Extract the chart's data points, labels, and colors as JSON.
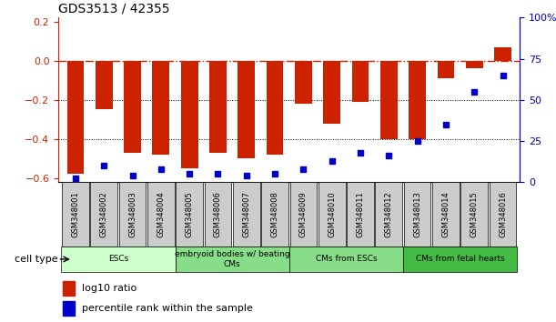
{
  "title": "GDS3513 / 42355",
  "samples": [
    "GSM348001",
    "GSM348002",
    "GSM348003",
    "GSM348004",
    "GSM348005",
    "GSM348006",
    "GSM348007",
    "GSM348008",
    "GSM348009",
    "GSM348010",
    "GSM348011",
    "GSM348012",
    "GSM348013",
    "GSM348014",
    "GSM348015",
    "GSM348016"
  ],
  "log10_ratio": [
    -0.58,
    -0.25,
    -0.47,
    -0.48,
    -0.55,
    -0.47,
    -0.5,
    -0.48,
    -0.22,
    -0.32,
    -0.21,
    -0.4,
    -0.4,
    -0.09,
    -0.04,
    0.07
  ],
  "percentile_rank": [
    2,
    10,
    4,
    8,
    5,
    5,
    4,
    5,
    8,
    13,
    18,
    16,
    25,
    35,
    55,
    65
  ],
  "bar_color": "#cc2200",
  "dot_color": "#0000cc",
  "ref_line_color": "#cc2200",
  "grid_color": "#000000",
  "bg_color": "#ffffff",
  "ylim_left": [
    -0.62,
    0.22
  ],
  "ylim_right": [
    0,
    100
  ],
  "yticks_left": [
    -0.6,
    -0.4,
    -0.2,
    0.0,
    0.2
  ],
  "yticks_right": [
    0,
    25,
    50,
    75,
    100
  ],
  "ytick_labels_right": [
    "0",
    "25",
    "50",
    "75",
    "100%"
  ],
  "cell_type_groups": [
    {
      "label": "ESCs",
      "start": 0,
      "end": 3,
      "color": "#ccffcc"
    },
    {
      "label": "embryoid bodies w/ beating\nCMs",
      "start": 4,
      "end": 7,
      "color": "#88dd88"
    },
    {
      "label": "CMs from ESCs",
      "start": 8,
      "end": 11,
      "color": "#88dd88"
    },
    {
      "label": "CMs from fetal hearts",
      "start": 12,
      "end": 15,
      "color": "#44bb44"
    }
  ],
  "legend_items": [
    {
      "label": "log10 ratio",
      "color": "#cc2200"
    },
    {
      "label": "percentile rank within the sample",
      "color": "#0000cc"
    }
  ],
  "cell_type_label": "cell type"
}
